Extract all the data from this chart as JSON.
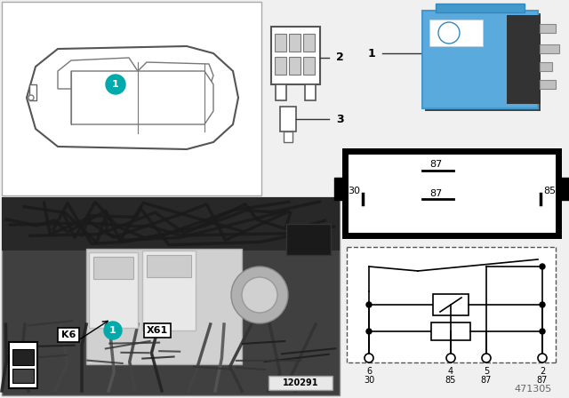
{
  "bg_color": "#f0f0f0",
  "white": "#ffffff",
  "black": "#000000",
  "blue_relay": "#5aaadd",
  "teal_circle": "#00aaaa",
  "gray_photo": "#787878",
  "label_1": "1",
  "label_2": "2",
  "label_3": "3",
  "label_K6": "K6",
  "label_X61": "X61",
  "footer_number": "471305",
  "photo_label": "120291",
  "pin_box_labels": [
    "87",
    "30",
    "87",
    "85"
  ],
  "schematic_top_nums": [
    "6",
    "4",
    "5",
    "2"
  ],
  "schematic_bot_nums": [
    "30",
    "85",
    "87",
    "87"
  ]
}
